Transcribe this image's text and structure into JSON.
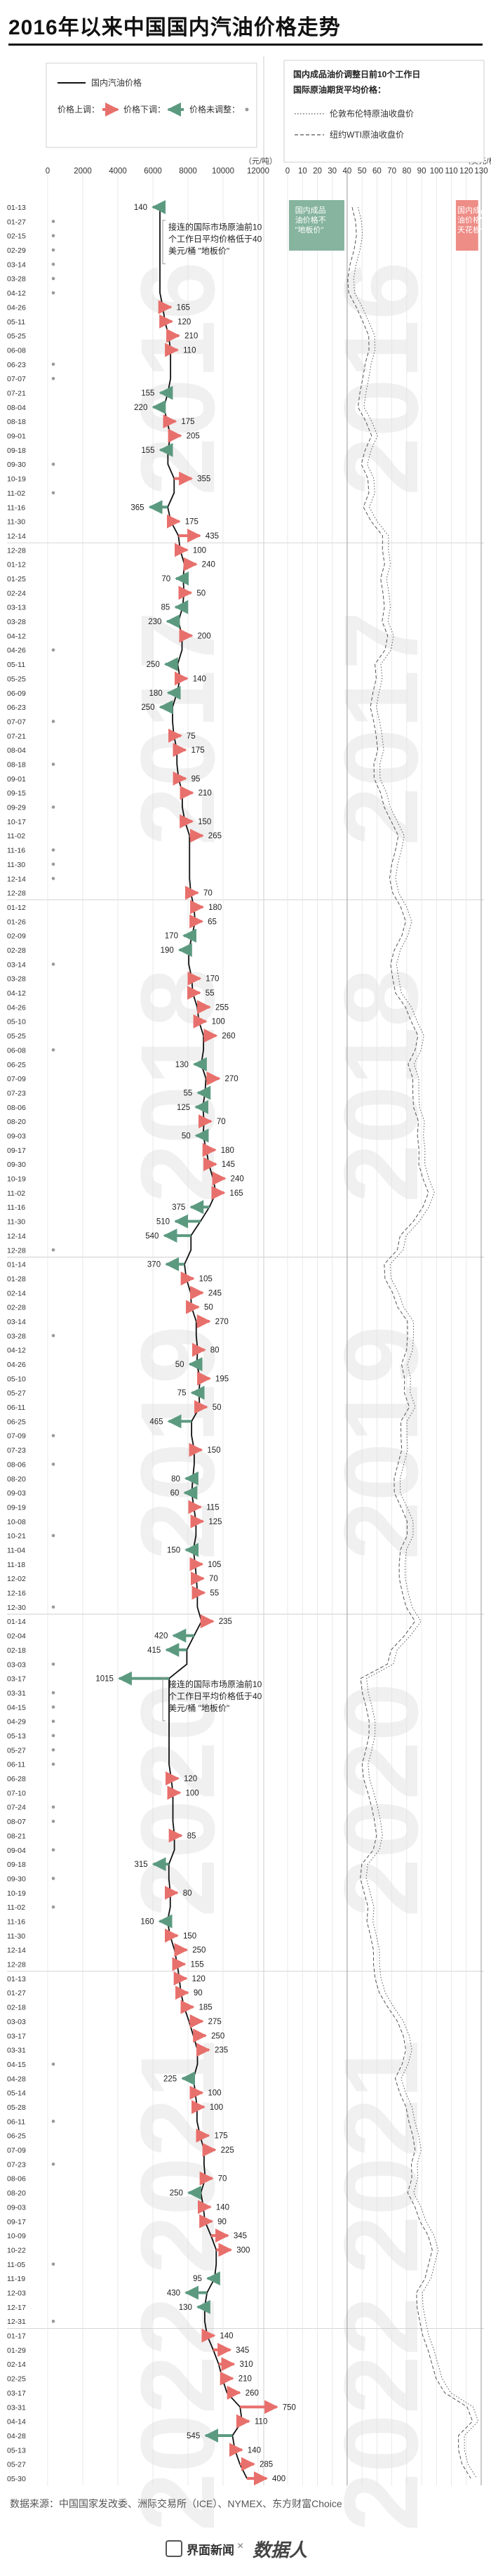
{
  "title": "2016年以来中国国内汽油价格走势",
  "source": "数据来源：中国国家发改委、洲际交易所（ICE）、NYMEX、东方财富Choice",
  "footer": {
    "logo_text": "界面新闻",
    "separator": "×",
    "brand": "数据人"
  },
  "colors": {
    "up": "#e8706c",
    "down": "#5c9a80",
    "line": "#111111",
    "floor_box": "#86b49e",
    "ceiling_box": "#ee8c86"
  },
  "chart_data": {
    "type": "line",
    "left_axis": {
      "unit": "（元/吨）",
      "ticks": [
        0,
        2000,
        4000,
        6000,
        8000,
        10000,
        12000
      ]
    },
    "right_axis": {
      "unit": "（美元/桶）",
      "ticks": [
        0,
        10,
        20,
        30,
        40,
        50,
        60,
        70,
        80,
        90,
        100,
        110,
        120,
        130
      ]
    },
    "legend_left": {
      "line_label": "国内汽油价格",
      "items": [
        {
          "label": "价格上调：",
          "icon": "red-arrow"
        },
        {
          "label": "价格下调：",
          "icon": "green-arrow"
        },
        {
          "label": "价格未调整：",
          "icon": "dot"
        }
      ]
    },
    "legend_right": {
      "heading1": "国内成品油价调整日前10个工作日",
      "heading2": "国际原油期货平均价格：",
      "items": [
        {
          "label": "伦敦布伦特原油收盘价",
          "style": "dotted"
        },
        {
          "label": "纽约WTI原油收盘价",
          "style": "dashed"
        }
      ]
    },
    "floor_label": "国内成品油价格不\"地板价\"",
    "ceiling_label": "国内成品油价格\"天花板价\"",
    "years": [
      {
        "label": "2016",
        "start": 0
      },
      {
        "label": "2017",
        "start": 24
      },
      {
        "label": "2018",
        "start": 49
      },
      {
        "label": "2019",
        "start": 74
      },
      {
        "label": "2020",
        "start": 99
      },
      {
        "label": "2021",
        "start": 124
      },
      {
        "label": "2022",
        "start": 149
      }
    ],
    "annotations": [
      {
        "at": 2,
        "text": [
          "接连的国际市场原油前10",
          "个工作日平均价格低于40",
          "美元/桶 \"地板价\""
        ]
      },
      {
        "at": 104,
        "text": [
          "接连的国际市场原油前10",
          "个工作日平均价格低于40",
          "美元/桶 \"地板价\""
        ]
      }
    ],
    "records": [
      [
        "01-13",
        -140
      ],
      [
        "01-27",
        0
      ],
      [
        "02-15",
        0
      ],
      [
        "02-29",
        0
      ],
      [
        "03-14",
        0
      ],
      [
        "03-28",
        0
      ],
      [
        "04-12",
        0
      ],
      [
        "04-26",
        165
      ],
      [
        "05-11",
        120
      ],
      [
        "05-25",
        210
      ],
      [
        "06-08",
        110
      ],
      [
        "06-23",
        0
      ],
      [
        "07-07",
        0
      ],
      [
        "07-21",
        -155
      ],
      [
        "08-04",
        -220
      ],
      [
        "08-18",
        175
      ],
      [
        "09-01",
        205
      ],
      [
        "09-18",
        -155
      ],
      [
        "09-30",
        0
      ],
      [
        "10-19",
        355
      ],
      [
        "11-02",
        0
      ],
      [
        "11-16",
        -365
      ],
      [
        "11-30",
        175
      ],
      [
        "12-14",
        435
      ],
      [
        "12-28",
        100
      ],
      [
        "01-12",
        240
      ],
      [
        "01-25",
        -70
      ],
      [
        "02-24",
        50
      ],
      [
        "03-13",
        -85
      ],
      [
        "03-28",
        -230
      ],
      [
        "04-12",
        200
      ],
      [
        "04-26",
        0
      ],
      [
        "05-11",
        -250
      ],
      [
        "05-25",
        140
      ],
      [
        "06-09",
        -180
      ],
      [
        "06-23",
        -250
      ],
      [
        "07-07",
        0
      ],
      [
        "07-21",
        75
      ],
      [
        "08-04",
        175
      ],
      [
        "08-18",
        0
      ],
      [
        "09-01",
        95
      ],
      [
        "09-15",
        210
      ],
      [
        "09-29",
        0
      ],
      [
        "10-17",
        150
      ],
      [
        "11-02",
        265
      ],
      [
        "11-16",
        0
      ],
      [
        "11-30",
        0
      ],
      [
        "12-14",
        0
      ],
      [
        "12-28",
        70
      ],
      [
        "01-12",
        180
      ],
      [
        "01-26",
        65
      ],
      [
        "02-09",
        -170
      ],
      [
        "02-28",
        -190
      ],
      [
        "03-14",
        0
      ],
      [
        "03-28",
        170
      ],
      [
        "04-12",
        55
      ],
      [
        "04-26",
        255
      ],
      [
        "05-10",
        100
      ],
      [
        "05-25",
        260
      ],
      [
        "06-08",
        0
      ],
      [
        "06-25",
        -130
      ],
      [
        "07-09",
        270
      ],
      [
        "07-23",
        -55
      ],
      [
        "08-06",
        -125
      ],
      [
        "08-20",
        70
      ],
      [
        "09-03",
        -50
      ],
      [
        "09-17",
        180
      ],
      [
        "09-30",
        145
      ],
      [
        "10-19",
        240
      ],
      [
        "11-02",
        165
      ],
      [
        "11-16",
        -375
      ],
      [
        "11-30",
        -510
      ],
      [
        "12-14",
        -540
      ],
      [
        "12-28",
        0
      ],
      [
        "01-14",
        -370
      ],
      [
        "01-28",
        105
      ],
      [
        "02-14",
        245
      ],
      [
        "02-28",
        50
      ],
      [
        "03-14",
        270
      ],
      [
        "03-28",
        0
      ],
      [
        "04-12",
        80
      ],
      [
        "04-26",
        -50
      ],
      [
        "05-10",
        195
      ],
      [
        "05-27",
        -75
      ],
      [
        "06-11",
        50
      ],
      [
        "06-25",
        -465
      ],
      [
        "07-09",
        0
      ],
      [
        "07-23",
        150
      ],
      [
        "08-06",
        0
      ],
      [
        "08-20",
        -80
      ],
      [
        "09-03",
        -60
      ],
      [
        "09-19",
        115
      ],
      [
        "10-08",
        125
      ],
      [
        "10-21",
        0
      ],
      [
        "11-04",
        -150
      ],
      [
        "11-18",
        105
      ],
      [
        "12-02",
        70
      ],
      [
        "12-16",
        55
      ],
      [
        "12-30",
        0
      ],
      [
        "01-14",
        235
      ],
      [
        "02-04",
        -420
      ],
      [
        "02-18",
        -415
      ],
      [
        "03-03",
        0
      ],
      [
        "03-17",
        -1015
      ],
      [
        "03-31",
        0
      ],
      [
        "04-15",
        0
      ],
      [
        "04-29",
        0
      ],
      [
        "05-13",
        0
      ],
      [
        "05-27",
        0
      ],
      [
        "06-11",
        0
      ],
      [
        "06-28",
        120
      ],
      [
        "07-10",
        100
      ],
      [
        "07-24",
        0
      ],
      [
        "08-07",
        0
      ],
      [
        "08-21",
        85
      ],
      [
        "09-04",
        0
      ],
      [
        "09-18",
        -315
      ],
      [
        "09-30",
        0
      ],
      [
        "10-19",
        80
      ],
      [
        "11-02",
        0
      ],
      [
        "11-16",
        -160
      ],
      [
        "11-30",
        150
      ],
      [
        "12-14",
        250
      ],
      [
        "12-28",
        155
      ],
      [
        "01-13",
        120
      ],
      [
        "01-27",
        90
      ],
      [
        "02-18",
        185
      ],
      [
        "03-03",
        275
      ],
      [
        "03-17",
        250
      ],
      [
        "03-31",
        235
      ],
      [
        "04-15",
        0
      ],
      [
        "04-28",
        -225
      ],
      [
        "05-14",
        100
      ],
      [
        "05-28",
        100
      ],
      [
        "06-11",
        0
      ],
      [
        "06-25",
        175
      ],
      [
        "07-09",
        225
      ],
      [
        "07-23",
        0
      ],
      [
        "08-06",
        70
      ],
      [
        "08-20",
        -250
      ],
      [
        "09-03",
        140
      ],
      [
        "09-17",
        90
      ],
      [
        "10-09",
        345
      ],
      [
        "10-22",
        300
      ],
      [
        "11-05",
        0
      ],
      [
        "11-19",
        -95
      ],
      [
        "12-03",
        -430
      ],
      [
        "12-17",
        -130
      ],
      [
        "12-31",
        0
      ],
      [
        "01-17",
        140
      ],
      [
        "01-29",
        345
      ],
      [
        "02-14",
        310
      ],
      [
        "02-25",
        210
      ],
      [
        "03-17",
        260
      ],
      [
        "03-31",
        750
      ],
      [
        "04-14",
        110
      ],
      [
        "04-28",
        -545
      ],
      [
        "05-13",
        140
      ],
      [
        "05-27",
        285
      ],
      [
        "05-30",
        400
      ]
    ]
  }
}
